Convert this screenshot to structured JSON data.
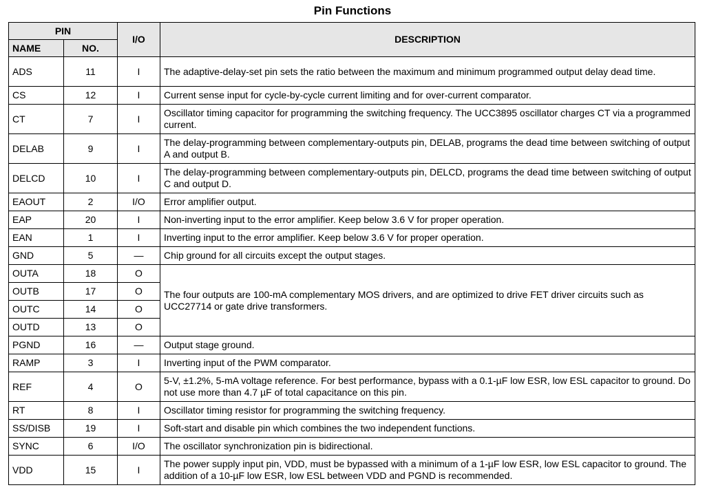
{
  "title": "Pin Functions",
  "headers": {
    "pin": "PIN",
    "name": "NAME",
    "no": "NO.",
    "io": "I/O",
    "description": "DESCRIPTION"
  },
  "rows": [
    {
      "name": "ADS",
      "no": "11",
      "io": "I",
      "description": "The adaptive-delay-set pin sets the ratio between the maximum and minimum programmed output delay dead time."
    },
    {
      "name": "CS",
      "no": "12",
      "io": "I",
      "description": "Current sense input for cycle-by-cycle current limiting and for over-current comparator."
    },
    {
      "name": "CT",
      "no": "7",
      "io": "I",
      "description": "Oscillator timing capacitor for programming the switching frequency. The UCC3895 oscillator charges CT via a programmed current."
    },
    {
      "name": "DELAB",
      "no": "9",
      "io": "I",
      "description": "The delay-programming between complementary-outputs pin, DELAB, programs the dead time between switching of output A and output B."
    },
    {
      "name": "DELCD",
      "no": "10",
      "io": "I",
      "description": "The delay-programming between complementary-outputs pin, DELCD, programs the dead time between switching of output C and output D."
    },
    {
      "name": "EAOUT",
      "no": "2",
      "io": "I/O",
      "description": "Error amplifier output."
    },
    {
      "name": "EAP",
      "no": "20",
      "io": "I",
      "description": "Non-inverting input to the error amplifier. Keep below 3.6 V for proper operation."
    },
    {
      "name": "EAN",
      "no": "1",
      "io": "I",
      "description": "Inverting input to the error amplifier. Keep below 3.6 V for proper operation."
    },
    {
      "name": "GND",
      "no": "5",
      "io": "—",
      "description": "Chip ground for all circuits except the output stages."
    },
    {
      "name": "OUTA",
      "no": "18",
      "io": "O",
      "description": "The four outputs are 100-mA complementary MOS drivers, and are optimized to drive FET driver circuits such as UCC27714 or gate drive transformers."
    },
    {
      "name": "OUTB",
      "no": "17",
      "io": "O"
    },
    {
      "name": "OUTC",
      "no": "14",
      "io": "O"
    },
    {
      "name": "OUTD",
      "no": "13",
      "io": "O"
    },
    {
      "name": "PGND",
      "no": "16",
      "io": "—",
      "description": "Output stage ground."
    },
    {
      "name": "RAMP",
      "no": "3",
      "io": "I",
      "description": "Inverting input of the PWM comparator."
    },
    {
      "name": "REF",
      "no": "4",
      "io": "O",
      "description": "5-V, ±1.2%, 5-mA voltage reference. For best performance, bypass with a 0.1-µF low ESR, low ESL capacitor to ground. Do not use more than 4.7 µF of total capacitance on this pin."
    },
    {
      "name": "RT",
      "no": "8",
      "io": "I",
      "description": "Oscillator timing resistor for programming the switching frequency."
    },
    {
      "name": "SS/DISB",
      "no": "19",
      "io": "I",
      "description": "Soft-start and disable pin which combines the two independent functions."
    },
    {
      "name": "SYNC",
      "no": "6",
      "io": "I/O",
      "description": "The oscillator synchronization pin is bidirectional."
    },
    {
      "name": "VDD",
      "no": "15",
      "io": "I",
      "description": "The power supply input pin, VDD, must be bypassed with a minimum of a 1-µF low ESR, low ESL capacitor to ground. The addition of a 10-µF low ESR, low ESL between VDD and PGND is recommended."
    }
  ]
}
